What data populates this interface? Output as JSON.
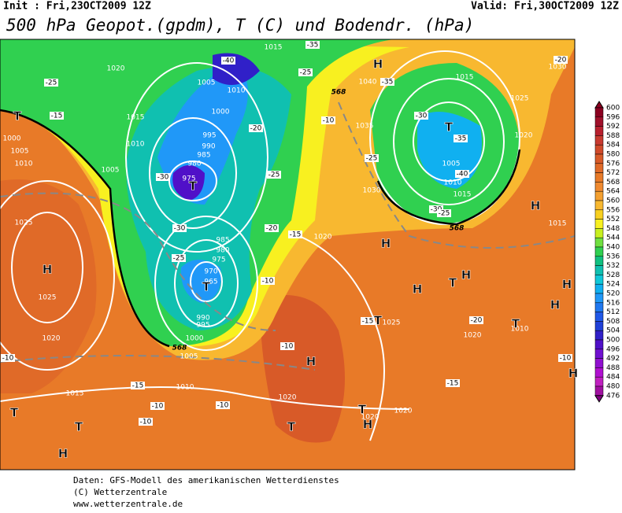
{
  "header": {
    "init": "Init : Fri,23OCT2009 12Z",
    "valid": "Valid: Fri,30OCT2009 12Z",
    "title": "500 hPa Geopot.(gpdm), T (C) und Bodendr. (hPa)"
  },
  "legend": {
    "values": [
      600,
      596,
      592,
      588,
      584,
      580,
      576,
      572,
      568,
      564,
      560,
      556,
      552,
      548,
      544,
      540,
      536,
      532,
      528,
      524,
      520,
      516,
      512,
      508,
      504,
      500,
      496,
      492,
      488,
      484,
      480,
      476
    ],
    "colors": [
      "#8b0020",
      "#a0102a",
      "#b8202e",
      "#c83a30",
      "#d04a2a",
      "#d85a28",
      "#e06a28",
      "#e87a28",
      "#f08a30",
      "#f4a030",
      "#f8b830",
      "#f8d020",
      "#f8f020",
      "#c8f020",
      "#70e040",
      "#30d050",
      "#10c080",
      "#10c0b0",
      "#10c8d8",
      "#10b0f0",
      "#2098f8",
      "#2078f0",
      "#2058e8",
      "#2040d8",
      "#3020c8",
      "#5010c8",
      "#7010d0",
      "#9010d0",
      "#b010d0",
      "#c020c0",
      "#a010a0",
      "#800080"
    ]
  },
  "map": {
    "labels": [
      "1015",
      "1020",
      "1005",
      "1010",
      "1000",
      "995",
      "990",
      "985",
      "980",
      "975",
      "-30",
      "-25",
      "-15",
      "1015",
      "1010",
      "1005",
      "1000",
      "1005",
      "1010",
      "1025",
      "1025",
      "1020",
      "1015",
      "1010",
      "1005",
      "1000",
      "995",
      "990",
      "985",
      "980",
      "975",
      "970",
      "965",
      "-30",
      "-25",
      "-20",
      "-15",
      "-10",
      "1020",
      "1035",
      "1030",
      "1040",
      "-35",
      "-30",
      "-35",
      "-40",
      "1005",
      "1010",
      "1015",
      "-30",
      "-25",
      "1015",
      "1025",
      "1020",
      "1030",
      "-20",
      "1015",
      "1025",
      "1020",
      "1010",
      "-15",
      "-15",
      "-10",
      "1020",
      "1020",
      "1020",
      "-15",
      "-10",
      "-10",
      "-10",
      "-10",
      "-40",
      "-35",
      "-25",
      "-20",
      "-25",
      "-10",
      "-25",
      "-10",
      "-20",
      "H",
      "H",
      "T",
      "H",
      "H",
      "H",
      "T",
      "H",
      "T",
      "H",
      "T",
      "T",
      "H",
      "T",
      "H",
      "H",
      "H",
      "T",
      "T",
      "H",
      "T",
      "T",
      "T",
      "568",
      "568",
      "568"
    ]
  },
  "footer": [
    "Daten: GFS-Modell des amerikanischen Wetterdienstes",
    "(C) Wetterzentrale",
    "www.wetterzentrale.de"
  ]
}
